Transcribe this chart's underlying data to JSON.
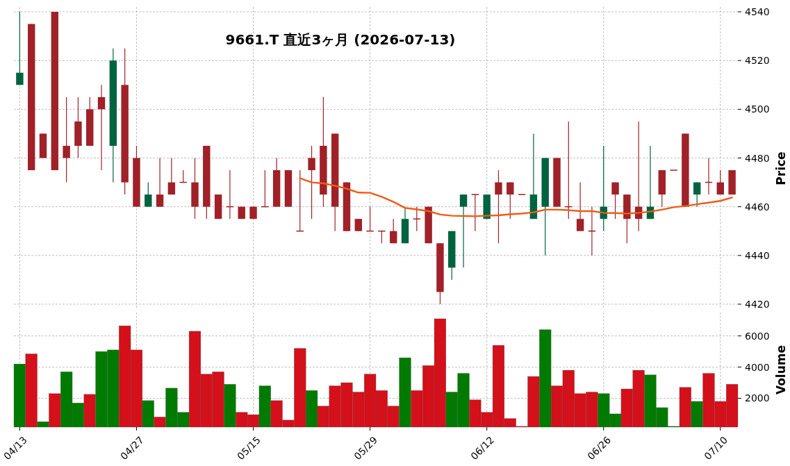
{
  "chart_data": [
    {
      "type": "candlestick",
      "title": "9661.T  直近3ヶ月  (2026-07-13)",
      "ylabel": "Price",
      "categories": [
        null,
        null,
        null,
        null,
        null,
        null,
        null,
        null,
        null,
        null,
        null,
        null,
        null,
        null,
        null,
        null,
        null,
        null,
        null,
        null,
        null,
        null,
        null,
        null,
        null,
        null,
        null,
        null,
        null,
        null,
        null,
        null,
        null,
        null,
        null,
        null,
        null,
        null,
        null,
        null,
        null,
        null,
        null,
        null,
        null,
        null,
        null,
        null,
        null,
        null,
        null,
        null,
        null,
        null,
        null,
        null,
        null,
        null,
        null,
        null,
        null,
        null
      ],
      "ohlc": [
        [
          4510,
          4540,
          4510,
          4515
        ],
        [
          4535,
          4535,
          4475,
          4475
        ],
        [
          4490,
          4490,
          4480,
          4480
        ],
        [
          4540,
          4540,
          4475,
          4475
        ],
        [
          4485,
          4505,
          4470,
          4480
        ],
        [
          4495,
          4505,
          4480,
          4485
        ],
        [
          4500,
          4505,
          4485,
          4485
        ],
        [
          4505,
          4510,
          4475,
          4500
        ],
        [
          4485,
          4525,
          4470,
          4520
        ],
        [
          4510,
          4525,
          4465,
          4470
        ],
        [
          4480,
          4485,
          4460,
          4460
        ],
        [
          4460,
          4470,
          4460,
          4465
        ],
        [
          4465,
          4480,
          4460,
          4460
        ],
        [
          4470,
          4480,
          4465,
          4465
        ],
        [
          4470,
          4475,
          4470,
          4470
        ],
        [
          4470,
          4480,
          4455,
          4460
        ],
        [
          4485,
          4485,
          4455,
          4460
        ],
        [
          4465,
          4465,
          4455,
          4455
        ],
        [
          4460,
          4475,
          4455,
          4460
        ],
        [
          4460,
          4460,
          4455,
          4455
        ],
        [
          4460,
          4460,
          4455,
          4455
        ],
        [
          4460,
          4475,
          4460,
          4460
        ],
        [
          4475,
          4480,
          4460,
          4460
        ],
        [
          4475,
          4475,
          4460,
          4460
        ],
        [
          4450,
          4475,
          4450,
          4450
        ],
        [
          4480,
          4485,
          4455,
          4475
        ],
        [
          4485,
          4505,
          4460,
          4465
        ],
        [
          4490,
          4490,
          4450,
          4460
        ],
        [
          4470,
          4470,
          4450,
          4450
        ],
        [
          4455,
          4455,
          4450,
          4450
        ],
        [
          4450,
          4460,
          4450,
          4450
        ],
        [
          4450,
          4450,
          4445,
          4450
        ],
        [
          4450,
          4455,
          4445,
          4445
        ],
        [
          4445,
          4460,
          4445,
          4455
        ],
        [
          4455,
          4460,
          4450,
          4455
        ],
        [
          4460,
          4460,
          4445,
          4445
        ],
        [
          4445,
          4445,
          4420,
          4425
        ],
        [
          4435,
          4450,
          4430,
          4450
        ],
        [
          4460,
          4465,
          4435,
          4465
        ],
        [
          4465,
          4465,
          4450,
          4465
        ],
        [
          4455,
          4465,
          4455,
          4465
        ],
        [
          4470,
          4475,
          4445,
          4465
        ],
        [
          4470,
          4470,
          4455,
          4465
        ],
        [
          4465,
          4465,
          4465,
          4465
        ],
        [
          4455,
          4490,
          4455,
          4465
        ],
        [
          4460,
          4480,
          4440,
          4480
        ],
        [
          4480,
          4480,
          4460,
          4460
        ],
        [
          4460,
          4495,
          4455,
          4460
        ],
        [
          4455,
          4470,
          4450,
          4450
        ],
        [
          4450,
          4460,
          4440,
          4450
        ],
        [
          4455,
          4485,
          4450,
          4460
        ],
        [
          4470,
          4470,
          4455,
          4465
        ],
        [
          4465,
          4465,
          4445,
          4455
        ],
        [
          4460,
          4495,
          4450,
          4455
        ],
        [
          4455,
          4485,
          4455,
          4460
        ],
        [
          4475,
          4475,
          4460,
          4465
        ],
        [
          4475,
          4475,
          4475,
          4475
        ],
        [
          4490,
          4490,
          4460,
          4460
        ],
        [
          4465,
          4470,
          4460,
          4470
        ],
        [
          4470,
          4480,
          4465,
          4470
        ],
        [
          4470,
          4475,
          4465,
          4465
        ],
        [
          4475,
          4475,
          4465,
          4465
        ]
      ],
      "colors": [
        "#006340",
        "#a02128",
        "#a02128",
        "#a02128",
        "#a02128",
        "#a02128",
        "#a02128",
        "#a02128",
        "#006340",
        "#a02128",
        "#a02128",
        "#006340",
        "#a02128",
        "#a02128",
        "#a02128",
        "#a02128",
        "#a02128",
        "#a02128",
        "#a02128",
        "#a02128",
        "#a02128",
        "#a02128",
        "#a02128",
        "#a02128",
        "#a02128",
        "#a02128",
        "#a02128",
        "#a02128",
        "#a02128",
        "#a02128",
        "#a02128",
        "#a02128",
        "#a02128",
        "#006340",
        "#a02128",
        "#a02128",
        "#a02128",
        "#006340",
        "#006340",
        "#a02128",
        "#006340",
        "#a02128",
        "#a02128",
        "#a02128",
        "#006340",
        "#006340",
        "#a02128",
        "#a02128",
        "#a02128",
        "#a02128",
        "#006340",
        "#a02128",
        "#a02128",
        "#a02128",
        "#006340",
        "#a02128",
        "#a02128",
        "#a02128",
        "#006340",
        "#a02128",
        "#a02128",
        "#a02128"
      ],
      "series": [
        {
          "type": "line",
          "color": "#f05a14",
          "values": [
            null,
            null,
            null,
            null,
            null,
            null,
            null,
            null,
            null,
            null,
            null,
            null,
            null,
            null,
            null,
            null,
            null,
            null,
            null,
            null,
            null,
            null,
            null,
            null,
            4471.7,
            4470,
            4469.6,
            4468.6,
            4467.4,
            4465.8,
            4465.7,
            4464.1,
            4462,
            4459.5,
            4458.9,
            4458.2,
            4456.8,
            4456.3,
            4456.2,
            4456.1,
            4456.3,
            4456.5,
            4456.9,
            4457.2,
            4457.7,
            4458.8,
            4458.8,
            4458.6,
            4458.2,
            4458.2,
            4457.5,
            4457.4,
            4457.2,
            4457.5,
            4458,
            4458.8,
            4459.8,
            4460.3,
            4461,
            4461.7,
            4462.4,
            4463.8
          ]
        }
      ],
      "ylim": [
        4418,
        4542
      ],
      "yticks": [
        4420,
        4440,
        4460,
        4480,
        4500,
        4520,
        4540
      ],
      "grid": true,
      "tick_labels": "y"
    },
    {
      "type": "bar",
      "ylabel": "Volume",
      "categories": [
        "04/13",
        null,
        null,
        null,
        null,
        null,
        null,
        null,
        null,
        null,
        "04/27",
        null,
        null,
        null,
        null,
        null,
        null,
        null,
        null,
        null,
        "05/15",
        null,
        null,
        null,
        null,
        null,
        null,
        null,
        null,
        null,
        "05/29",
        null,
        null,
        null,
        null,
        null,
        null,
        null,
        null,
        null,
        "06/12",
        null,
        null,
        null,
        null,
        null,
        null,
        null,
        null,
        null,
        "06/26",
        null,
        null,
        null,
        null,
        null,
        null,
        null,
        null,
        null,
        "07/10",
        null
      ],
      "values": [
        4200,
        4850,
        500,
        2300,
        3700,
        1700,
        2250,
        5000,
        5100,
        6650,
        5100,
        1850,
        800,
        2650,
        1100,
        6300,
        3550,
        3700,
        2900,
        1100,
        950,
        2800,
        1850,
        600,
        5200,
        2500,
        1500,
        2800,
        3000,
        2400,
        3550,
        2500,
        1500,
        4600,
        2500,
        4100,
        7100,
        2400,
        3600,
        1900,
        1100,
        5400,
        700,
        200,
        3400,
        6400,
        2800,
        3800,
        2300,
        2400,
        2300,
        1000,
        2600,
        3800,
        3500,
        1400,
        200,
        2700,
        1800,
        3600,
        1800,
        2900
      ],
      "colors": [
        "#007a00",
        "#d4101a",
        "#007a00",
        "#d4101a",
        "#007a00",
        "#007a00",
        "#d4101a",
        "#007a00",
        "#007a00",
        "#d4101a",
        "#d4101a",
        "#007a00",
        "#d4101a",
        "#007a00",
        "#007a00",
        "#d4101a",
        "#d4101a",
        "#d4101a",
        "#007a00",
        "#d4101a",
        "#d4101a",
        "#007a00",
        "#d4101a",
        "#d4101a",
        "#d4101a",
        "#007a00",
        "#d4101a",
        "#d4101a",
        "#d4101a",
        "#d4101a",
        "#d4101a",
        "#d4101a",
        "#d4101a",
        "#007a00",
        "#d4101a",
        "#d4101a",
        "#d4101a",
        "#007a00",
        "#007a00",
        "#d4101a",
        "#d4101a",
        "#d4101a",
        "#d4101a",
        "#d4101a",
        "#d4101a",
        "#007a00",
        "#d4101a",
        "#d4101a",
        "#d4101a",
        "#d4101a",
        "#007a00",
        "#007a00",
        "#d4101a",
        "#d4101a",
        "#007a00",
        "#007a00",
        "#007a00",
        "#d4101a",
        "#007a00",
        "#d4101a",
        "#d4101a",
        "#d4101a"
      ],
      "ylim": [
        150,
        7500
      ],
      "yticks": [
        2000,
        4000,
        6000
      ],
      "grid": true
    }
  ]
}
